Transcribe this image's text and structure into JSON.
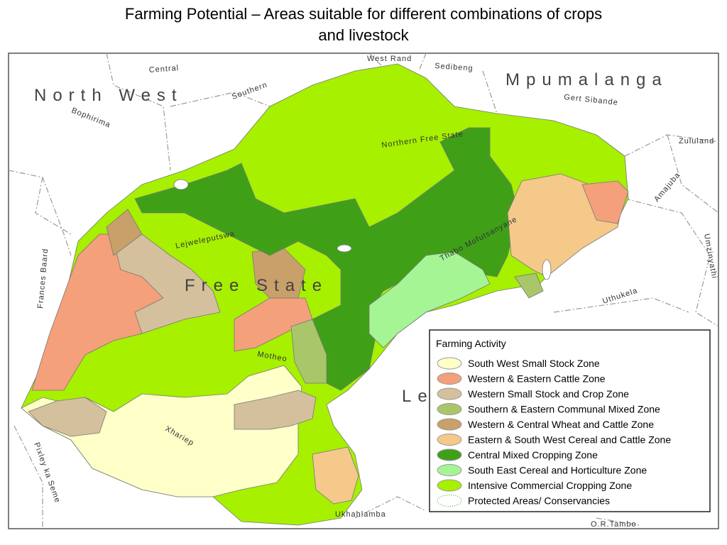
{
  "title_line1": "Farming Potential – Areas suitable for different combinations of crops",
  "title_line2": "and livestock",
  "map_labels": [
    "North West",
    "Mpumalanga",
    "Free State",
    "Le",
    "Central",
    "Southern",
    "Bophirima",
    "West Rand",
    "Sedibeng",
    "Gert Sibande",
    "Northern Free State",
    "Zululand",
    "Amajuba",
    "Umzinyathi",
    "Uthukela",
    "Thabo Mofutsanyane",
    "Lejweleputswa",
    "Frances Baard",
    "Motheo",
    "Xhariep",
    "Pixley ka Seme",
    "Ukhahlamba",
    "O.R.Tambo"
  ],
  "legend": {
    "title": "Farming Activity",
    "items": [
      {
        "name": "South West Small Stock Zone",
        "color": "#ffffc8"
      },
      {
        "name": "Western & Eastern Cattle Zone",
        "color": "#f4a07a"
      },
      {
        "name": "Western Small Stock and Crop Zone",
        "color": "#d4c09c"
      },
      {
        "name": "Southern & Eastern Communal Mixed Zone",
        "color": "#a9c66a"
      },
      {
        "name": "Western & Central Wheat and Cattle Zone",
        "color": "#c9a06a"
      },
      {
        "name": "Eastern & South West  Cereal and Cattle Zone",
        "color": "#f5c98a"
      },
      {
        "name": "Central Mixed Cropping Zone",
        "color": "#3fa018"
      },
      {
        "name": "South East Cereal and Horticulture Zone",
        "color": "#a5f595"
      },
      {
        "name": "Intensive Commercial Cropping Zone",
        "color": "#a6f000"
      },
      {
        "name": "Protected Areas/ Conservancies",
        "color": "#ffffff"
      }
    ]
  }
}
